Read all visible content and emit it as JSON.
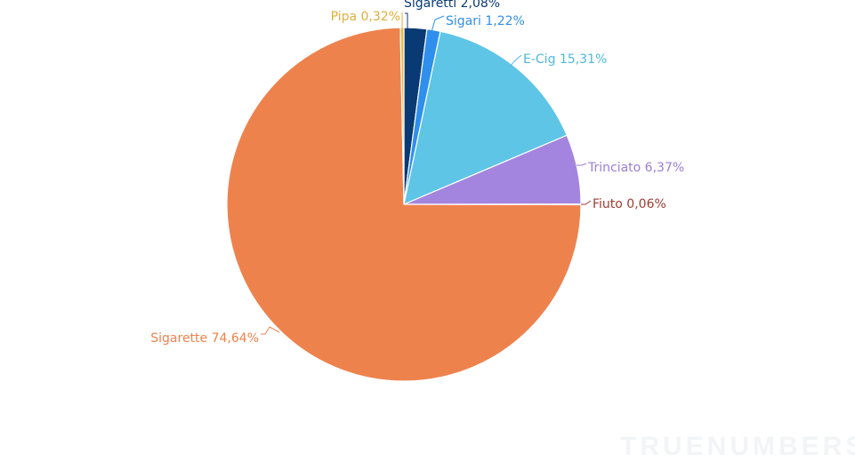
{
  "chart_data": {
    "type": "pie",
    "title": "",
    "slices": [
      {
        "name": "Sigaretti",
        "label": "Sigaretti 2,08%",
        "value": 2.08,
        "color": "#0a3a73",
        "label_color": "#0a3a73"
      },
      {
        "name": "Sigari",
        "label": "Sigari 1,22%",
        "value": 1.22,
        "color": "#2f8fec",
        "label_color": "#2f8fec"
      },
      {
        "name": "E-Cig",
        "label": "E-Cig 15,31%",
        "value": 15.31,
        "color": "#5ec5e6",
        "label_color": "#4fb8e0"
      },
      {
        "name": "Trinciato",
        "label": "Trinciato 6,37%",
        "value": 6.37,
        "color": "#a385df",
        "label_color": "#9b7ed8"
      },
      {
        "name": "Fiuto",
        "label": "Fiuto 0,06%",
        "value": 0.06,
        "color": "#9e3b33",
        "label_color": "#9e3b33"
      },
      {
        "name": "Sigarette",
        "label": "Sigarette 74,64%",
        "value": 74.64,
        "color": "#ee824d",
        "label_color": "#ee824d"
      },
      {
        "name": "Pipa",
        "label": "Pipa 0,32%",
        "value": 0.32,
        "color": "#e7b84a",
        "label_color": "#e0ae3a"
      }
    ]
  },
  "watermark": "TRUENUMBERS"
}
